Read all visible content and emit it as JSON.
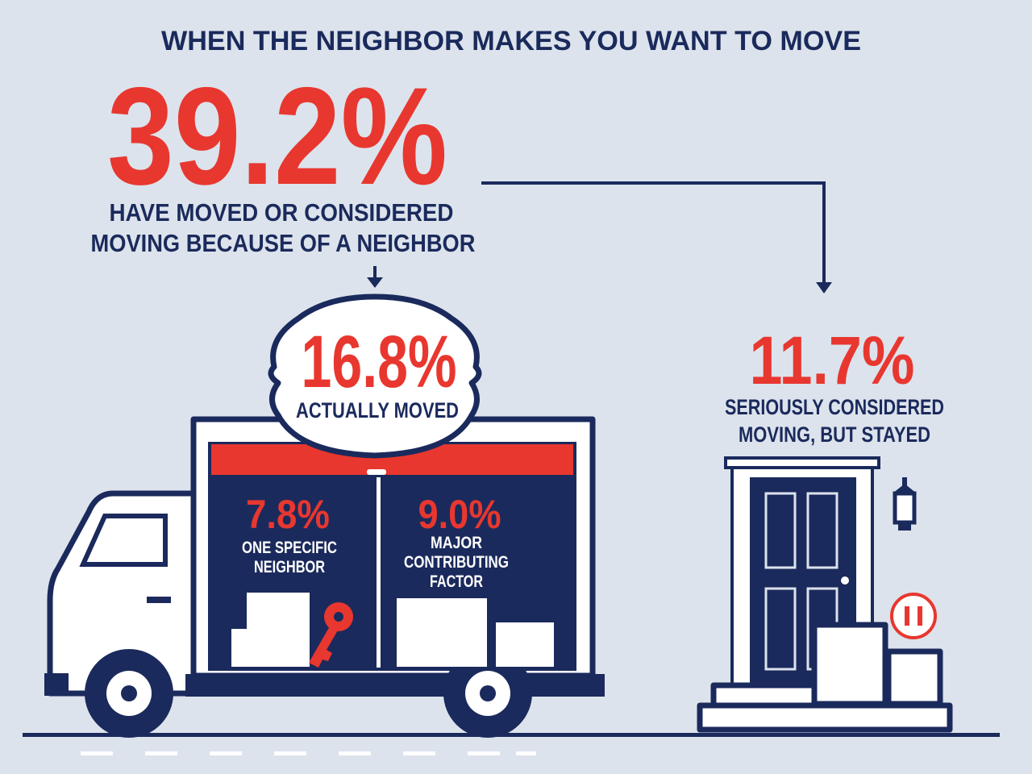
{
  "header": {
    "title": "WHEN THE NEIGHBOR MAKES YOU WANT TO MOVE"
  },
  "considered": {
    "value": "39.2%",
    "label": [
      "HAVE MOVED OR CONSIDERED",
      "MOVING BECAUSE OF A NEIGHBOR"
    ]
  },
  "moved": {
    "value": "16.8%",
    "label": "ACTUALLY MOVED"
  },
  "specific_neighbor": {
    "value": "7.8%",
    "label": [
      "ONE SPECIFIC",
      "NEIGHBOR"
    ]
  },
  "contributing_factor": {
    "value": "9.0%",
    "label": [
      "MAJOR",
      "CONTRIBUTING",
      "FACTOR"
    ]
  },
  "stayed": {
    "value": "11.7%",
    "label": [
      "SERIOUSLY CONSIDERED",
      "MOVING, BUT STAYED"
    ]
  }
}
